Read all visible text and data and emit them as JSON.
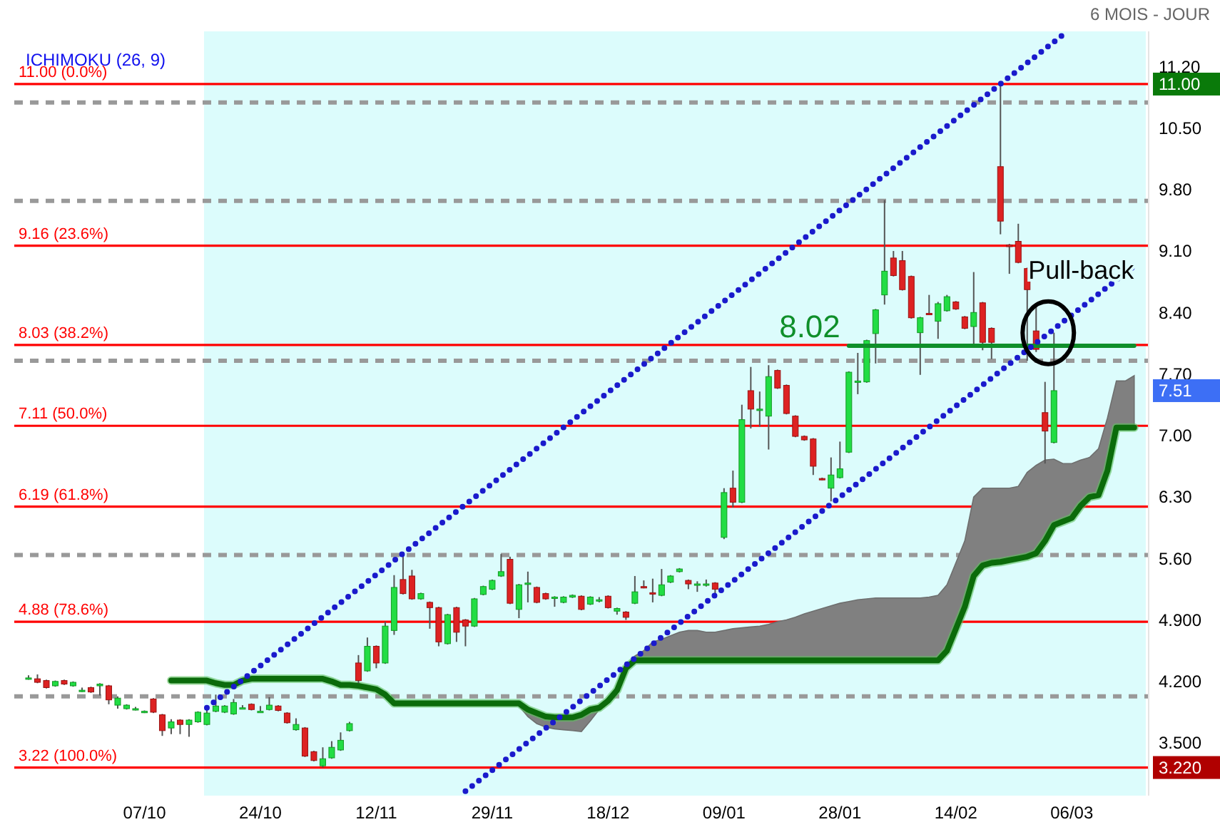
{
  "chart_data": {
    "type": "candlestick",
    "title": "6 MOIS - JOUR",
    "subtitle": "ICHIMOKU (26, 9)",
    "categories": [
      null,
      null,
      null,
      null,
      null,
      null,
      null,
      null,
      null,
      null,
      null,
      null,
      null,
      "07/10",
      null,
      null,
      null,
      null,
      null,
      null,
      null,
      null,
      null,
      null,
      null,
      null,
      "24/10",
      null,
      null,
      null,
      null,
      null,
      null,
      null,
      null,
      null,
      null,
      null,
      null,
      "12/11",
      null,
      null,
      null,
      null,
      null,
      null,
      null,
      null,
      null,
      null,
      null,
      null,
      "29/11",
      null,
      null,
      null,
      null,
      null,
      null,
      null,
      null,
      null,
      null,
      null,
      null,
      "18/12",
      null,
      null,
      null,
      null,
      null,
      null,
      null,
      null,
      null,
      null,
      null,
      null,
      "09/01",
      null,
      null,
      null,
      null,
      null,
      null,
      null,
      null,
      null,
      null,
      null,
      null,
      "28/01",
      null,
      null,
      null,
      null,
      null,
      null,
      null,
      null,
      null,
      null,
      null,
      null,
      "14/02",
      null,
      null,
      null,
      null,
      null,
      null,
      null,
      null,
      null,
      null,
      null,
      null,
      "06/03",
      null,
      null,
      null,
      null,
      null,
      null,
      null
    ],
    "ohlc": [
      [
        4.24,
        4.27,
        4.22,
        4.24
      ],
      [
        4.23,
        4.28,
        4.18,
        4.19
      ],
      [
        4.21,
        4.22,
        4.12,
        4.13
      ],
      [
        4.15,
        4.21,
        4.14,
        4.2
      ],
      [
        4.21,
        4.22,
        4.16,
        4.17
      ],
      [
        4.15,
        4.2,
        4.14,
        4.19
      ],
      [
        4.1,
        4.13,
        4.08,
        4.1
      ],
      [
        4.13,
        4.14,
        4.07,
        4.08
      ],
      [
        4.15,
        4.18,
        4.04,
        4.17
      ],
      [
        4.15,
        4.16,
        3.94,
        3.99
      ],
      [
        3.93,
        4.03,
        3.89,
        4.01
      ],
      [
        3.89,
        3.94,
        3.88,
        3.93
      ],
      [
        3.89,
        3.91,
        3.87,
        3.89
      ],
      [
        3.86,
        3.87,
        3.84,
        3.86
      ],
      [
        4.0,
        4.01,
        3.84,
        3.85
      ],
      [
        3.82,
        3.83,
        3.58,
        3.64
      ],
      [
        3.67,
        3.77,
        3.6,
        3.74
      ],
      [
        3.76,
        3.77,
        3.6,
        3.71
      ],
      [
        3.71,
        3.77,
        3.57,
        3.76
      ],
      [
        3.74,
        3.86,
        3.73,
        3.85
      ],
      [
        3.71,
        3.9,
        3.7,
        3.84
      ],
      [
        3.86,
        4.05,
        3.85,
        3.92
      ],
      [
        3.85,
        3.93,
        3.84,
        3.92
      ],
      [
        3.83,
        4.0,
        3.82,
        3.96
      ],
      [
        3.9,
        3.93,
        3.89,
        3.9
      ],
      [
        3.94,
        3.95,
        3.87,
        3.88
      ],
      [
        3.86,
        3.92,
        3.86,
        3.86
      ],
      [
        3.88,
        4.02,
        3.87,
        3.93
      ],
      [
        3.92,
        3.93,
        3.86,
        3.87
      ],
      [
        3.84,
        3.85,
        3.72,
        3.73
      ],
      [
        3.65,
        3.78,
        3.64,
        3.71
      ],
      [
        3.67,
        3.68,
        3.34,
        3.35
      ],
      [
        3.4,
        3.41,
        3.29,
        3.3
      ],
      [
        3.24,
        3.45,
        3.22,
        3.32
      ],
      [
        3.33,
        3.52,
        3.32,
        3.45
      ],
      [
        3.42,
        3.62,
        3.41,
        3.53
      ],
      [
        3.64,
        3.74,
        3.63,
        3.72
      ],
      [
        4.41,
        4.5,
        4.18,
        4.21
      ],
      [
        4.32,
        4.7,
        4.31,
        4.6
      ],
      [
        4.6,
        4.61,
        4.35,
        4.41
      ],
      [
        4.41,
        4.88,
        4.4,
        4.83
      ],
      [
        4.78,
        5.41,
        4.73,
        5.27
      ],
      [
        5.36,
        5.66,
        5.19,
        5.2
      ],
      [
        5.4,
        5.47,
        5.13,
        5.14
      ],
      [
        5.14,
        5.21,
        5.13,
        5.2
      ],
      [
        5.1,
        5.11,
        4.8,
        5.04
      ],
      [
        5.04,
        5.05,
        4.6,
        4.65
      ],
      [
        4.63,
        4.97,
        4.62,
        4.96
      ],
      [
        5.04,
        5.05,
        4.65,
        4.76
      ],
      [
        4.9,
        4.91,
        4.6,
        4.83
      ],
      [
        4.83,
        5.15,
        4.82,
        5.14
      ],
      [
        5.19,
        5.29,
        5.18,
        5.28
      ],
      [
        5.25,
        5.36,
        5.24,
        5.35
      ],
      [
        5.4,
        5.65,
        5.39,
        5.45
      ],
      [
        5.59,
        5.62,
        5.08,
        5.09
      ],
      [
        5.02,
        5.31,
        4.92,
        5.3
      ],
      [
        5.32,
        5.45,
        5.1,
        5.32
      ],
      [
        5.27,
        5.28,
        5.09,
        5.1
      ],
      [
        5.2,
        5.21,
        5.13,
        5.14
      ],
      [
        5.16,
        5.17,
        5.05,
        5.16
      ],
      [
        5.1,
        5.17,
        5.09,
        5.16
      ],
      [
        5.16,
        5.19,
        5.15,
        5.18
      ],
      [
        5.17,
        5.18,
        5.01,
        5.02
      ],
      [
        5.08,
        5.17,
        5.07,
        5.16
      ],
      [
        5.13,
        5.16,
        5.1,
        5.13
      ],
      [
        5.17,
        5.18,
        5.03,
        5.04
      ],
      [
        5.0,
        5.04,
        4.96,
        5.03
      ],
      [
        4.99,
        5.0,
        4.9,
        4.93
      ],
      [
        5.09,
        5.4,
        5.08,
        5.22
      ],
      [
        5.28,
        5.35,
        5.26,
        5.27
      ],
      [
        5.21,
        5.37,
        5.1,
        5.2
      ],
      [
        5.18,
        5.48,
        5.17,
        5.3
      ],
      [
        5.33,
        5.41,
        5.32,
        5.4
      ],
      [
        5.45,
        5.49,
        5.44,
        5.48
      ],
      [
        5.35,
        5.36,
        5.25,
        5.31
      ],
      [
        5.31,
        5.34,
        5.22,
        5.31
      ],
      [
        5.31,
        5.36,
        5.28,
        5.31
      ],
      [
        5.32,
        5.33,
        5.2,
        5.25
      ],
      [
        5.84,
        6.4,
        5.82,
        6.35
      ],
      [
        6.4,
        6.6,
        6.18,
        6.24
      ],
      [
        6.24,
        7.35,
        6.23,
        7.18
      ],
      [
        7.51,
        7.78,
        7.08,
        7.3
      ],
      [
        7.3,
        7.5,
        7.1,
        7.3
      ],
      [
        7.22,
        7.8,
        6.84,
        7.67
      ],
      [
        7.74,
        7.75,
        7.53,
        7.54
      ],
      [
        7.57,
        7.58,
        7.24,
        7.25
      ],
      [
        7.22,
        7.23,
        6.98,
        6.99
      ],
      [
        6.99,
        7.0,
        6.94,
        6.95
      ],
      [
        6.96,
        6.97,
        6.55,
        6.65
      ],
      [
        6.51,
        6.52,
        6.49,
        6.5
      ],
      [
        6.4,
        6.75,
        6.25,
        6.55
      ],
      [
        6.52,
        6.93,
        6.51,
        6.62
      ],
      [
        6.81,
        7.73,
        6.8,
        7.72
      ],
      [
        7.61,
        7.94,
        7.47,
        7.62
      ],
      [
        7.61,
        8.09,
        7.6,
        8.08
      ],
      [
        8.16,
        8.44,
        7.82,
        8.43
      ],
      [
        8.6,
        9.68,
        8.49,
        8.87
      ],
      [
        9.02,
        9.1,
        8.81,
        8.82
      ],
      [
        8.99,
        9.1,
        8.65,
        8.66
      ],
      [
        8.81,
        8.82,
        8.33,
        8.34
      ],
      [
        8.17,
        8.35,
        7.69,
        8.34
      ],
      [
        8.39,
        8.6,
        8.37,
        8.38
      ],
      [
        8.3,
        8.52,
        8.1,
        8.5
      ],
      [
        8.42,
        8.6,
        8.41,
        8.58
      ],
      [
        8.52,
        8.53,
        8.43,
        8.44
      ],
      [
        8.35,
        8.36,
        8.21,
        8.22
      ],
      [
        8.24,
        8.86,
        8.0,
        8.4
      ],
      [
        8.51,
        8.52,
        7.97,
        8.06
      ],
      [
        8.22,
        8.23,
        7.87,
        8.06
      ],
      [
        10.06,
        11.0,
        9.29,
        9.44
      ],
      [
        9.17,
        9.18,
        8.84,
        9.15
      ],
      [
        9.21,
        9.41,
        8.96,
        8.97
      ],
      [
        8.9,
        8.91,
        7.85,
        8.66
      ],
      [
        8.19,
        8.49,
        7.95,
        7.98
      ],
      [
        7.26,
        7.61,
        6.68,
        7.05
      ],
      [
        6.92,
        8.17,
        6.91,
        7.51
      ],
      null,
      null,
      null,
      null,
      null,
      null,
      null,
      null,
      null
    ],
    "series": [
      {
        "type": "line",
        "color": "#0b6b0b",
        "values": [
          null,
          null,
          null,
          null,
          null,
          null,
          null,
          null,
          null,
          null,
          null,
          null,
          null,
          null,
          null,
          null,
          4.21,
          4.21,
          4.21,
          4.21,
          4.21,
          4.18,
          4.16,
          4.16,
          4.21,
          4.23,
          4.23,
          4.23,
          4.23,
          4.23,
          4.23,
          4.23,
          4.23,
          4.23,
          4.2,
          4.16,
          4.16,
          4.15,
          4.13,
          4.11,
          4.05,
          3.95,
          3.95,
          3.95,
          3.95,
          3.95,
          3.95,
          3.95,
          3.95,
          3.95,
          3.95,
          3.95,
          3.95,
          3.95,
          3.95,
          3.95,
          3.88,
          3.84,
          3.8,
          3.79,
          3.79,
          3.79,
          3.82,
          3.88,
          3.9,
          3.98,
          4.1,
          4.35,
          4.44,
          4.44,
          4.44,
          4.44,
          4.44,
          4.44,
          4.44,
          4.44,
          4.44,
          4.44,
          4.44,
          4.44,
          4.44,
          4.44,
          4.44,
          4.44,
          4.44,
          4.44,
          4.44,
          4.44,
          4.44,
          4.44,
          4.44,
          4.44,
          4.44,
          4.44,
          4.44,
          4.44,
          4.44,
          4.44,
          4.44,
          4.44,
          4.44,
          4.44,
          4.44,
          4.55,
          4.8,
          5.05,
          5.4,
          5.52,
          5.55,
          5.56,
          5.58,
          5.6,
          5.62,
          5.66,
          5.8,
          5.98,
          6.02,
          6.06,
          6.2,
          6.3,
          6.32,
          6.6,
          7.09,
          7.09,
          7.09
        ],
        "lower": [
          null,
          null,
          null,
          null,
          null,
          null,
          null,
          null,
          null,
          null,
          null,
          null,
          null,
          null,
          null,
          null,
          null,
          null,
          null,
          null,
          null,
          null,
          null,
          null,
          null,
          null,
          null,
          null,
          null,
          null,
          null,
          null,
          null,
          null,
          null,
          null,
          null,
          null,
          null,
          null,
          null,
          3.92,
          3.92,
          3.92,
          3.92,
          3.92,
          3.92,
          3.92,
          3.92,
          3.92,
          3.92,
          3.92,
          3.92,
          3.92,
          3.92,
          3.92,
          3.8,
          3.72,
          3.68,
          3.66,
          3.65,
          3.64,
          3.63,
          3.75,
          3.88,
          3.98,
          4.1,
          4.35,
          4.44,
          4.44,
          4.44,
          4.44,
          4.44,
          4.44,
          4.44,
          4.44,
          4.44,
          4.44,
          4.44,
          4.44,
          4.44,
          4.44,
          4.44,
          4.44,
          4.44,
          4.44,
          4.44,
          4.44,
          4.44,
          4.44,
          4.44,
          4.44,
          4.44,
          4.44,
          4.44,
          4.44,
          4.44,
          4.44,
          4.44,
          4.44,
          4.44,
          4.44,
          4.44,
          4.55,
          4.8,
          5.05,
          5.4,
          5.52,
          5.55,
          5.56,
          5.58,
          5.6,
          5.62,
          5.66,
          5.8,
          5.98,
          6.02,
          6.06,
          6.2,
          6.3,
          6.32,
          6.6,
          7.09,
          7.09,
          7.09
        ],
        "upper": [
          null,
          null,
          null,
          null,
          null,
          null,
          null,
          null,
          null,
          null,
          null,
          null,
          null,
          null,
          null,
          null,
          null,
          null,
          null,
          null,
          null,
          null,
          null,
          null,
          null,
          null,
          null,
          null,
          null,
          null,
          null,
          null,
          null,
          null,
          null,
          null,
          null,
          null,
          null,
          null,
          null,
          3.95,
          3.95,
          3.95,
          3.95,
          3.95,
          3.95,
          3.95,
          3.95,
          3.95,
          3.95,
          3.95,
          3.95,
          3.95,
          3.95,
          3.95,
          3.88,
          3.84,
          3.8,
          3.79,
          3.79,
          3.79,
          3.82,
          3.88,
          3.9,
          3.98,
          4.1,
          4.35,
          4.49,
          4.55,
          4.65,
          4.68,
          4.72,
          4.76,
          4.78,
          4.78,
          4.76,
          4.76,
          4.78,
          4.8,
          4.81,
          4.82,
          4.83,
          4.85,
          4.88,
          4.9,
          4.93,
          4.97,
          5.0,
          5.03,
          5.06,
          5.09,
          5.11,
          5.13,
          5.14,
          5.15,
          5.15,
          5.15,
          5.15,
          5.15,
          5.15,
          5.16,
          5.18,
          5.3,
          5.55,
          5.8,
          6.3,
          6.4,
          6.4,
          6.4,
          6.4,
          6.42,
          6.58,
          6.66,
          6.72,
          6.73,
          6.68,
          6.68,
          6.72,
          6.75,
          6.85,
          7.2,
          7.62,
          7.62,
          7.68
        ]
      },
      {
        "type": "line",
        "name": "8.02",
        "color": "#0f8f2a",
        "values": [
          null,
          null,
          null,
          null,
          null,
          null,
          null,
          null,
          null,
          null,
          null,
          null,
          null,
          null,
          null,
          null,
          null,
          null,
          null,
          null,
          null,
          null,
          null,
          null,
          null,
          null,
          null,
          null,
          null,
          null,
          null,
          null,
          null,
          null,
          null,
          null,
          null,
          null,
          null,
          null,
          null,
          null,
          null,
          null,
          null,
          null,
          null,
          null,
          null,
          null,
          null,
          null,
          null,
          null,
          null,
          null,
          null,
          null,
          null,
          null,
          null,
          null,
          null,
          null,
          null,
          null,
          null,
          null,
          null,
          null,
          null,
          null,
          null,
          null,
          null,
          null,
          null,
          null,
          null,
          null,
          null,
          null,
          null,
          null,
          null,
          null,
          null,
          null,
          null,
          null,
          null,
          null,
          8.02,
          null,
          null,
          null,
          null,
          null,
          null,
          null,
          null,
          null,
          null,
          null,
          null,
          null,
          null,
          null,
          null,
          null,
          null,
          null,
          null,
          null,
          null,
          null,
          null,
          null,
          null,
          null,
          null,
          null,
          null,
          null,
          8.02
        ]
      },
      {
        "type": "line",
        "color": "#1a1acc",
        "line_style": "dotted",
        "values": [
          null,
          null,
          null,
          null,
          null,
          null,
          null,
          null,
          null,
          null,
          null,
          null,
          null,
          null,
          null,
          null,
          null,
          null,
          null,
          null,
          3.9,
          null,
          null,
          null,
          null,
          null,
          null,
          null,
          null,
          null,
          null,
          null,
          null,
          null,
          null,
          null,
          null,
          null,
          null,
          null,
          null,
          null,
          null,
          null,
          null,
          null,
          null,
          null,
          null,
          null,
          null,
          null,
          null,
          null,
          null,
          null,
          null,
          null,
          null,
          null,
          null,
          null,
          null,
          null,
          null,
          null,
          null,
          null,
          null,
          null,
          null,
          null,
          null,
          null,
          null,
          null,
          null,
          null,
          null,
          null,
          null,
          null,
          null,
          null,
          null,
          null,
          null,
          null,
          null,
          null,
          null,
          null,
          null,
          null,
          null,
          null,
          null,
          null,
          null,
          null,
          null,
          null,
          null,
          null,
          null,
          null,
          null,
          null,
          null,
          null,
          null,
          null,
          null,
          null,
          null,
          null,
          11.56,
          null,
          null,
          null,
          null,
          null,
          null,
          null,
          null
        ]
      },
      {
        "type": "line",
        "color": "#1a1acc",
        "line_style": "dotted",
        "values": [
          null,
          null,
          null,
          null,
          null,
          null,
          null,
          null,
          null,
          null,
          null,
          null,
          null,
          null,
          null,
          null,
          null,
          null,
          null,
          null,
          null,
          null,
          null,
          null,
          null,
          null,
          null,
          null,
          null,
          null,
          null,
          null,
          null,
          null,
          null,
          null,
          null,
          null,
          null,
          null,
          null,
          null,
          null,
          null,
          null,
          null,
          null,
          null,
          null,
          2.95,
          null,
          null,
          null,
          null,
          null,
          null,
          null,
          null,
          null,
          null,
          null,
          null,
          null,
          null,
          null,
          null,
          null,
          null,
          null,
          null,
          null,
          null,
          null,
          null,
          null,
          null,
          null,
          null,
          null,
          null,
          null,
          null,
          null,
          null,
          null,
          null,
          null,
          null,
          null,
          null,
          null,
          null,
          null,
          null,
          null,
          null,
          null,
          null,
          null,
          null,
          null,
          null,
          null,
          null,
          null,
          null,
          null,
          null,
          null,
          null,
          null,
          null,
          null,
          null,
          null,
          null,
          null,
          null,
          null,
          null,
          null,
          null,
          null,
          null,
          8.93
        ]
      }
    ],
    "ylim": [
      2.9,
      11.6
    ],
    "yticks": [
      {
        "value": 11.2,
        "label": "11.20"
      },
      {
        "value": 10.5,
        "label": "10.50"
      },
      {
        "value": 9.8,
        "label": "9.80"
      },
      {
        "value": 9.1,
        "label": "9.10"
      },
      {
        "value": 8.4,
        "label": "8.40"
      },
      {
        "value": 7.7,
        "label": "7.70"
      },
      {
        "value": 7.0,
        "label": "7.00"
      },
      {
        "value": 6.3,
        "label": "6.30"
      },
      {
        "value": 5.6,
        "label": "5.60"
      },
      {
        "value": 4.9,
        "label": "4.900"
      },
      {
        "value": 4.2,
        "label": "4.200"
      },
      {
        "value": 3.5,
        "label": "3.500"
      }
    ],
    "ref_lines": [
      {
        "axis": "y",
        "value": 10.79,
        "color": "#999999",
        "line_style": "dashed"
      },
      {
        "axis": "y",
        "value": 9.67,
        "color": "#999999",
        "line_style": "dashed"
      },
      {
        "axis": "y",
        "value": 7.85,
        "color": "#999999",
        "line_style": "dashed"
      },
      {
        "axis": "y",
        "value": 5.64,
        "color": "#999999",
        "line_style": "dashed"
      },
      {
        "axis": "y",
        "value": 4.03,
        "color": "#999999",
        "line_style": "dashed"
      },
      {
        "axis": "y",
        "value": 11.0,
        "label": "11.00 (0.0%)",
        "color": "#ff0000"
      },
      {
        "axis": "y",
        "value": 9.16,
        "label": "9.16 (23.6%)",
        "color": "#ff0000"
      },
      {
        "axis": "y",
        "value": 8.03,
        "label": "8.03 (38.2%)",
        "color": "#ff0000"
      },
      {
        "axis": "y",
        "value": 7.11,
        "label": "7.11 (50.0%)",
        "color": "#ff0000"
      },
      {
        "axis": "y",
        "value": 6.19,
        "label": "6.19 (61.8%)",
        "color": "#ff0000"
      },
      {
        "axis": "y",
        "value": 4.88,
        "label": "4.88 (78.6%)",
        "color": "#ff0000"
      },
      {
        "axis": "y",
        "value": 3.22,
        "label": "3.22 (100.0%)",
        "color": "#ff0000"
      }
    ],
    "annotations": [
      "Pull-back",
      "11.00",
      "7.51",
      "3.220"
    ]
  }
}
